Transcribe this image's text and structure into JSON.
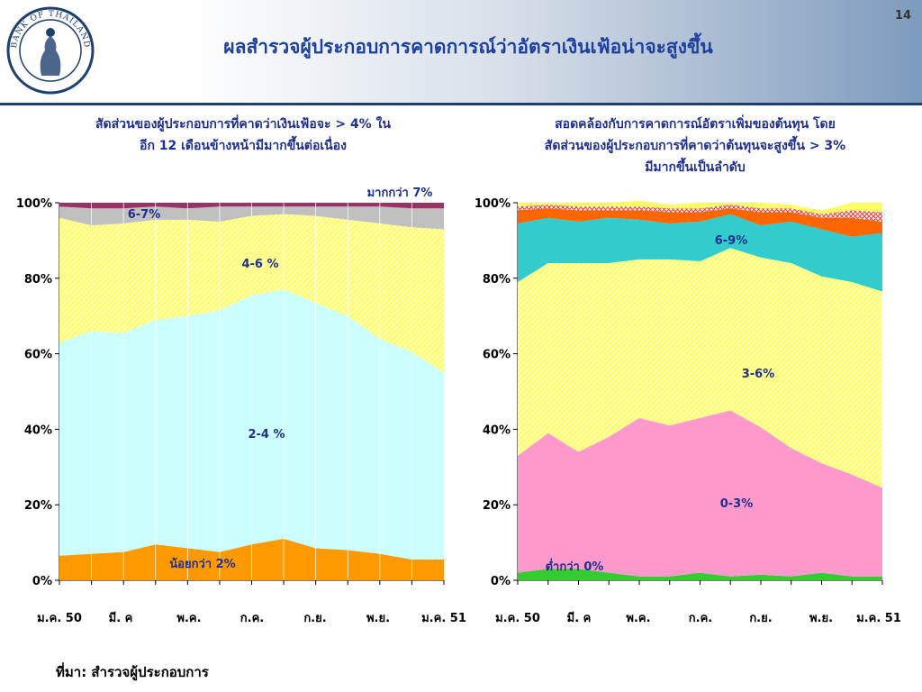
{
  "page": {
    "title": "ผลสำรวจผู้ประกอบการคาดการณ์ว่าอัตราเงินเฟ้อน่าจะสูงขึ้น",
    "page_number": "14",
    "logo_text": "BANK OF THAILAND",
    "source": "ที่มา: สำรวจผู้ประกอบการ"
  },
  "left_title": {
    "line1": "สัดส่วนของผู้ประกอบการที่คาดว่าเงินเฟ้อจะ > 4% ใน",
    "line2": "อีก 12 เดือนข้างหน้ามีมากขึ้นต่อเนื่อง"
  },
  "right_title": {
    "line1": "สอดคล้องกับการคาดการณ์อัตราเพิ่มของต้นทุน โดย",
    "line2": "สัดส่วนของผู้ประกอบการที่คาดว่าต้นทุนจะสูงขึ้น > 3%",
    "line3": "มีมากขึ้นเป็นลำดับ"
  },
  "colors": {
    "orange": "#ff9900",
    "light_cyan": "#ccffff",
    "yellow": "#ffff66",
    "gray": "#c0c0c0",
    "maroon": "#993366",
    "green": "#33cc33",
    "pink": "#ff99cc",
    "teal": "#33cccc",
    "red_orange": "#ff6600",
    "brand_blue": "#1f3f6d"
  },
  "chart_data": [
    {
      "type": "area",
      "stacked": true,
      "x_tick_labels": [
        "ม.ค. 50",
        "มี. ค",
        "พ.ค.",
        "ก.ค.",
        "ก.ย.",
        "พ.ย.",
        "ม.ค. 51"
      ],
      "ylim": [
        0,
        100
      ],
      "y_tick_labels": [
        "0%",
        "20%",
        "40%",
        "60%",
        "80%",
        "100%"
      ],
      "series": [
        {
          "name": "น้อยกว่า 2%",
          "values": [
            6.5,
            7,
            7.5,
            9.5,
            8.5,
            7.5,
            9.5,
            11,
            8.5,
            8,
            7,
            5.5,
            5.5
          ]
        },
        {
          "name": "2-4 %",
          "values": [
            56.5,
            59,
            58,
            59.5,
            61.5,
            64,
            66,
            66,
            65,
            62,
            57,
            55,
            49.5
          ]
        },
        {
          "name": "4-6 %",
          "values": [
            33,
            28,
            29,
            26.5,
            25.5,
            23.5,
            21,
            20,
            23,
            25.5,
            30.5,
            33,
            38
          ]
        },
        {
          "name": "6-7%",
          "values": [
            3,
            4.5,
            4,
            3.5,
            3,
            4,
            2.5,
            2,
            2.5,
            3.5,
            4.5,
            5,
            5.5
          ]
        },
        {
          "name": "มากกว่า 7%",
          "values": [
            1,
            1.5,
            1.5,
            1,
            1.5,
            1,
            1,
            1,
            1,
            1,
            1,
            1.5,
            1.5
          ]
        }
      ],
      "labels": {
        "less2": "น้อยกว่า 2%",
        "s24": "2-4 %",
        "s46": "4-6 %",
        "s67": "6-7%",
        "more7": "มากกว่า 7%"
      }
    },
    {
      "type": "area",
      "stacked": true,
      "x_tick_labels": [
        "ม.ค. 50",
        "มี. ค",
        "พ.ค.",
        "ก.ค.",
        "ก.ย.",
        "พ.ย.",
        "ม.ค. 51"
      ],
      "ylim": [
        0,
        100
      ],
      "y_tick_labels": [
        "0%",
        "20%",
        "40%",
        "60%",
        "80%",
        "100%"
      ],
      "series": [
        {
          "name": "ต่ำกว่า 0%",
          "values": [
            2,
            3,
            3,
            2,
            1,
            1,
            2,
            1,
            1.5,
            1,
            2,
            1,
            1
          ]
        },
        {
          "name": "0-3%",
          "values": [
            31,
            36,
            31,
            36,
            42,
            40,
            41,
            44,
            39,
            34,
            29,
            27,
            23.5
          ]
        },
        {
          "name": "3-6%",
          "values": [
            46,
            45,
            50,
            46,
            42,
            44,
            41.5,
            43,
            45,
            49,
            49.5,
            51,
            52
          ]
        },
        {
          "name": "6-9%",
          "values": [
            15.5,
            12,
            11,
            12,
            10.5,
            9.5,
            10.5,
            9,
            8.5,
            11,
            12.5,
            12,
            15.5
          ]
        },
        {
          "name": "red",
          "values": [
            3.5,
            2.5,
            3,
            2,
            2.5,
            3,
            2.5,
            1.5,
            3.5,
            2.5,
            3,
            5,
            3
          ]
        },
        {
          "name": "hatched",
          "values": [
            1,
            1,
            1,
            1,
            1,
            1,
            1,
            1,
            1,
            1,
            1,
            2,
            2.5
          ]
        },
        {
          "name": "yellow-top",
          "values": [
            1,
            0.5,
            1,
            1,
            1.5,
            1,
            1.5,
            0.5,
            1.5,
            1,
            1,
            2,
            2.5
          ]
        }
      ],
      "labels": {
        "below0": "ต่ำกว่า 0%",
        "s03": "0-3%",
        "s36": "3-6%",
        "s69": "6-9%"
      }
    }
  ]
}
